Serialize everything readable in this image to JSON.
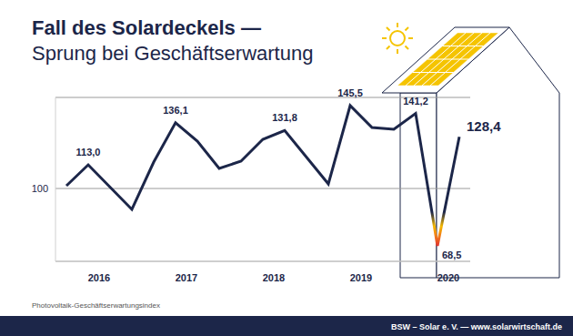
{
  "chart_data": {
    "type": "line",
    "title": "Fall des Solardeckels —",
    "subtitle": "Sprung bei Geschäftserwartung",
    "caption": "Photovoltaik-Geschäftserwartungsindex",
    "source": "BSW – Solar e. V. — www.solarwirtschaft.de",
    "x": [
      2016.125,
      2016.375,
      2016.875,
      2017.125,
      2017.375,
      2017.625,
      2017.875,
      2018.125,
      2018.375,
      2018.625,
      2019.125,
      2019.375,
      2019.625,
      2019.875,
      2020.125,
      2020.375,
      2020.625
    ],
    "values": [
      101.5,
      113.0,
      88.5,
      114.5,
      136.1,
      126,
      111,
      115,
      127,
      131.8,
      102.5,
      145.5,
      133.5,
      132.5,
      141.2,
      68.5,
      128.4
    ],
    "value_labels": [
      null,
      "113,0",
      null,
      null,
      "136,1",
      null,
      null,
      null,
      null,
      "131,8",
      null,
      "145,5",
      null,
      null,
      "141,2",
      "68,5",
      "128,4"
    ],
    "color": "#1c2649",
    "xlim": [
      2016,
      2020.75
    ],
    "xticks": [
      {
        "value": 2016.5,
        "label": "2016"
      },
      {
        "value": 2017.5,
        "label": "2017"
      },
      {
        "value": 2018.5,
        "label": "2018"
      },
      {
        "value": 2019.5,
        "label": "2019"
      },
      {
        "value": 2020.5,
        "label": "2020"
      }
    ],
    "ylim": [
      60,
      150
    ],
    "yticks": [
      100
    ],
    "grid": true,
    "data_labels": true
  }
}
